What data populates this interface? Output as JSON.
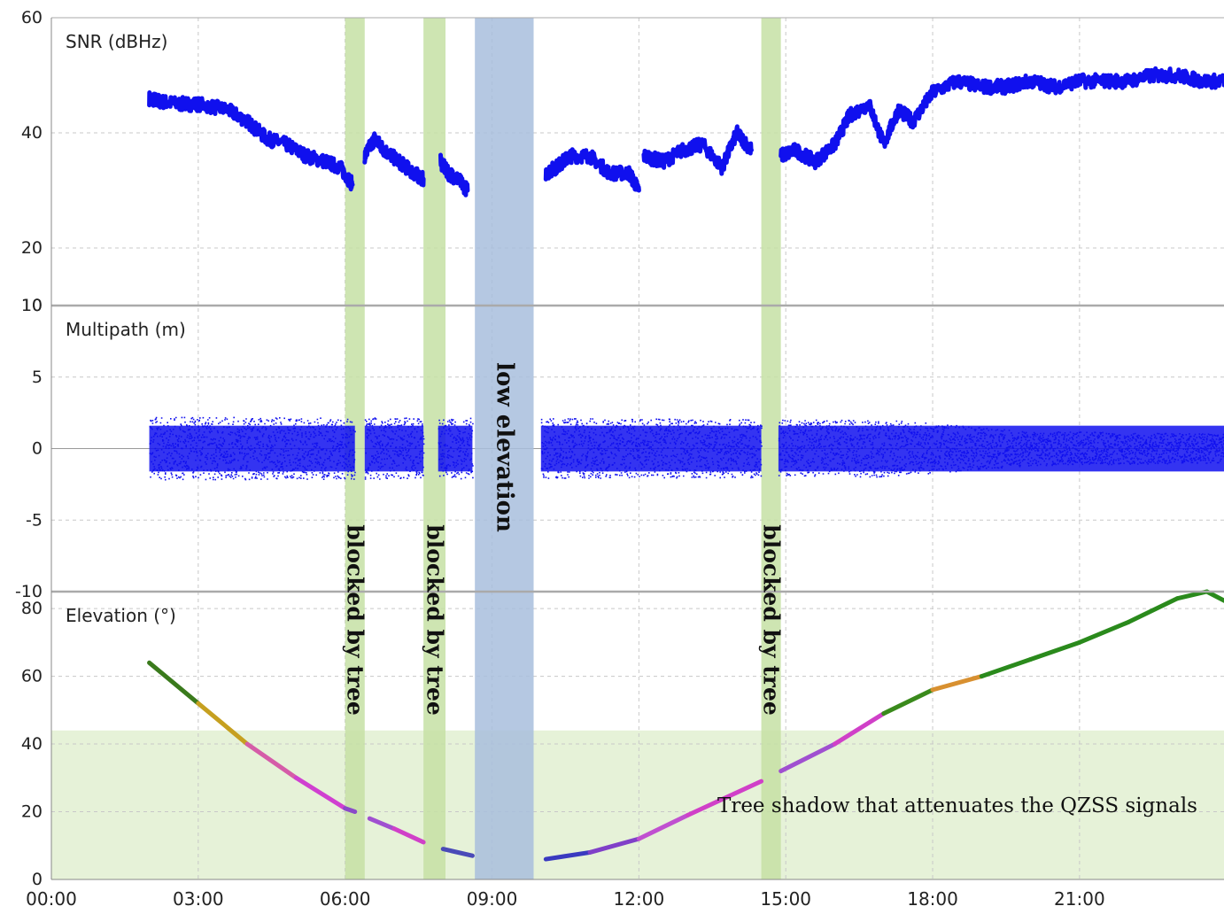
{
  "chart_data": [
    {
      "type": "line",
      "panel": "snr",
      "title": "SNR (dBHz)",
      "xlabel": "",
      "ylabel": "",
      "ylim": [
        10,
        60
      ],
      "yticks": [
        10,
        20,
        40,
        60
      ],
      "x_unit": "hour",
      "series": [
        {
          "color": "#1010ee",
          "segments": [
            {
              "x": [
                2.0,
                2.2,
                2.6,
                3.0,
                3.6,
                4.0,
                4.4,
                4.8,
                5.2,
                5.6,
                5.9,
                6.15
              ],
              "y": [
                46,
                45.5,
                45,
                45,
                44,
                42,
                39,
                38,
                36,
                35,
                34,
                31
              ]
            },
            {
              "x": [
                6.4,
                6.6,
                6.8,
                7.1,
                7.4,
                7.6
              ],
              "y": [
                36,
                39,
                37,
                35,
                33,
                32
              ]
            },
            {
              "x": [
                7.95,
                8.1,
                8.3,
                8.5
              ],
              "y": [
                35,
                33,
                32,
                30
              ]
            },
            {
              "x": [
                10.1,
                10.3,
                10.6,
                11.0,
                11.4,
                11.8,
                12.0
              ],
              "y": [
                33,
                34,
                36,
                36,
                33,
                33,
                30
              ]
            },
            {
              "x": [
                12.1,
                12.5,
                12.9,
                13.3,
                13.7,
                14.0,
                14.3
              ],
              "y": [
                36,
                35,
                37,
                38,
                34,
                40,
                37
              ]
            },
            {
              "x": [
                14.9,
                15.2,
                15.6,
                16.0,
                16.3,
                16.7,
                17.0,
                17.3,
                17.6,
                18.0,
                18.5,
                19.0,
                19.5,
                20.0,
                20.5,
                21.0,
                21.5,
                22.0,
                22.5,
                23.0,
                23.5,
                24.0
              ],
              "y": [
                36,
                37,
                35,
                38,
                43,
                45,
                38,
                44,
                42,
                47,
                49,
                48,
                48,
                49,
                48,
                49,
                49,
                49,
                50,
                50,
                49,
                49
              ]
            }
          ]
        }
      ]
    },
    {
      "type": "scatter",
      "panel": "multipath",
      "title": "Multipath (m)",
      "xlabel": "",
      "ylabel": "",
      "ylim": [
        -10,
        10
      ],
      "yticks": [
        -10,
        -5,
        0,
        5,
        10
      ],
      "x_unit": "hour",
      "series": [
        {
          "color": "#1010ee",
          "center": 0,
          "spread_hours": [
            2.0,
            17.0,
            20.0,
            24.0
          ],
          "spread_amplitude": [
            2.2,
            2.0,
            1.2,
            1.0
          ],
          "visible_intervals": [
            [
              2.0,
              6.2
            ],
            [
              6.4,
              7.6
            ],
            [
              7.9,
              8.6
            ],
            [
              10.0,
              14.5
            ],
            [
              14.85,
              24.0
            ]
          ]
        }
      ]
    },
    {
      "type": "line",
      "panel": "elevation",
      "title": "Elevation (°)",
      "xlabel": "",
      "ylabel": "",
      "ylim": [
        0,
        85
      ],
      "yticks": [
        0,
        20,
        40,
        60,
        80
      ],
      "xticks": [
        "00:00",
        "03:00",
        "06:00",
        "09:00",
        "12:00",
        "15:00",
        "18:00",
        "21:00"
      ],
      "x_unit": "hour",
      "series": [
        {
          "segments": [
            {
              "x": [
                2.0,
                3.0,
                4.0,
                5.0,
                6.0,
                6.2
              ],
              "y": [
                64,
                52,
                40,
                30,
                21,
                20
              ],
              "colors": [
                "#3a7a1c",
                "#c6a020",
                "#d55ca8",
                "#d040d0",
                "#8a4ac8",
                "#6040c8"
              ]
            },
            {
              "x": [
                6.5,
                7.0,
                7.6
              ],
              "y": [
                18,
                15,
                11
              ],
              "colors": [
                "#a050d0",
                "#d040c8",
                "#5050c0"
              ]
            },
            {
              "x": [
                8.0,
                8.6
              ],
              "y": [
                9,
                7
              ],
              "colors": [
                "#4a4ab8",
                "#4a4ab8"
              ]
            },
            {
              "x": [
                10.1,
                11.0,
                12.0,
                13.0,
                14.5
              ],
              "y": [
                6,
                8,
                12,
                19,
                29
              ],
              "colors": [
                "#3a3ac0",
                "#8040c8",
                "#c050d0",
                "#d040c8",
                "#d040c8"
              ]
            },
            {
              "x": [
                14.9,
                16.0,
                17.0,
                18.0,
                19.0,
                20.0,
                21.0,
                22.0,
                23.0,
                23.6,
                24.0
              ],
              "y": [
                32,
                40,
                49,
                56,
                60,
                65,
                70,
                76,
                83,
                85,
                82
              ],
              "colors": [
                "#a050d0",
                "#d040c8",
                "#3a8a1c",
                "#d89030",
                "#2a8a1c",
                "#2a8a1c",
                "#2a8a1c",
                "#2a8a1c",
                "#2a8a1c",
                "#2a8a1c",
                "#2a8a1c"
              ]
            }
          ]
        }
      ]
    }
  ],
  "annotations": {
    "tree_shadow_label": "Tree shadow that attenuates the QZSS signals",
    "tree_shadow_below_deg": 44,
    "blocked_label": "blocked by tree",
    "blocked_intervals": [
      [
        6.0,
        6.4
      ],
      [
        7.6,
        8.05
      ],
      [
        14.5,
        14.9
      ]
    ],
    "low_elevation_label": "low elevation",
    "low_elevation_interval": [
      8.65,
      9.85
    ]
  },
  "colors": {
    "green_band": "#c5e0a4",
    "blue_band": "#a8bedd",
    "tree_shadow": "#e6f2d8",
    "panel_divider": "#aaaaaa",
    "grid": "#c8c8c8"
  }
}
